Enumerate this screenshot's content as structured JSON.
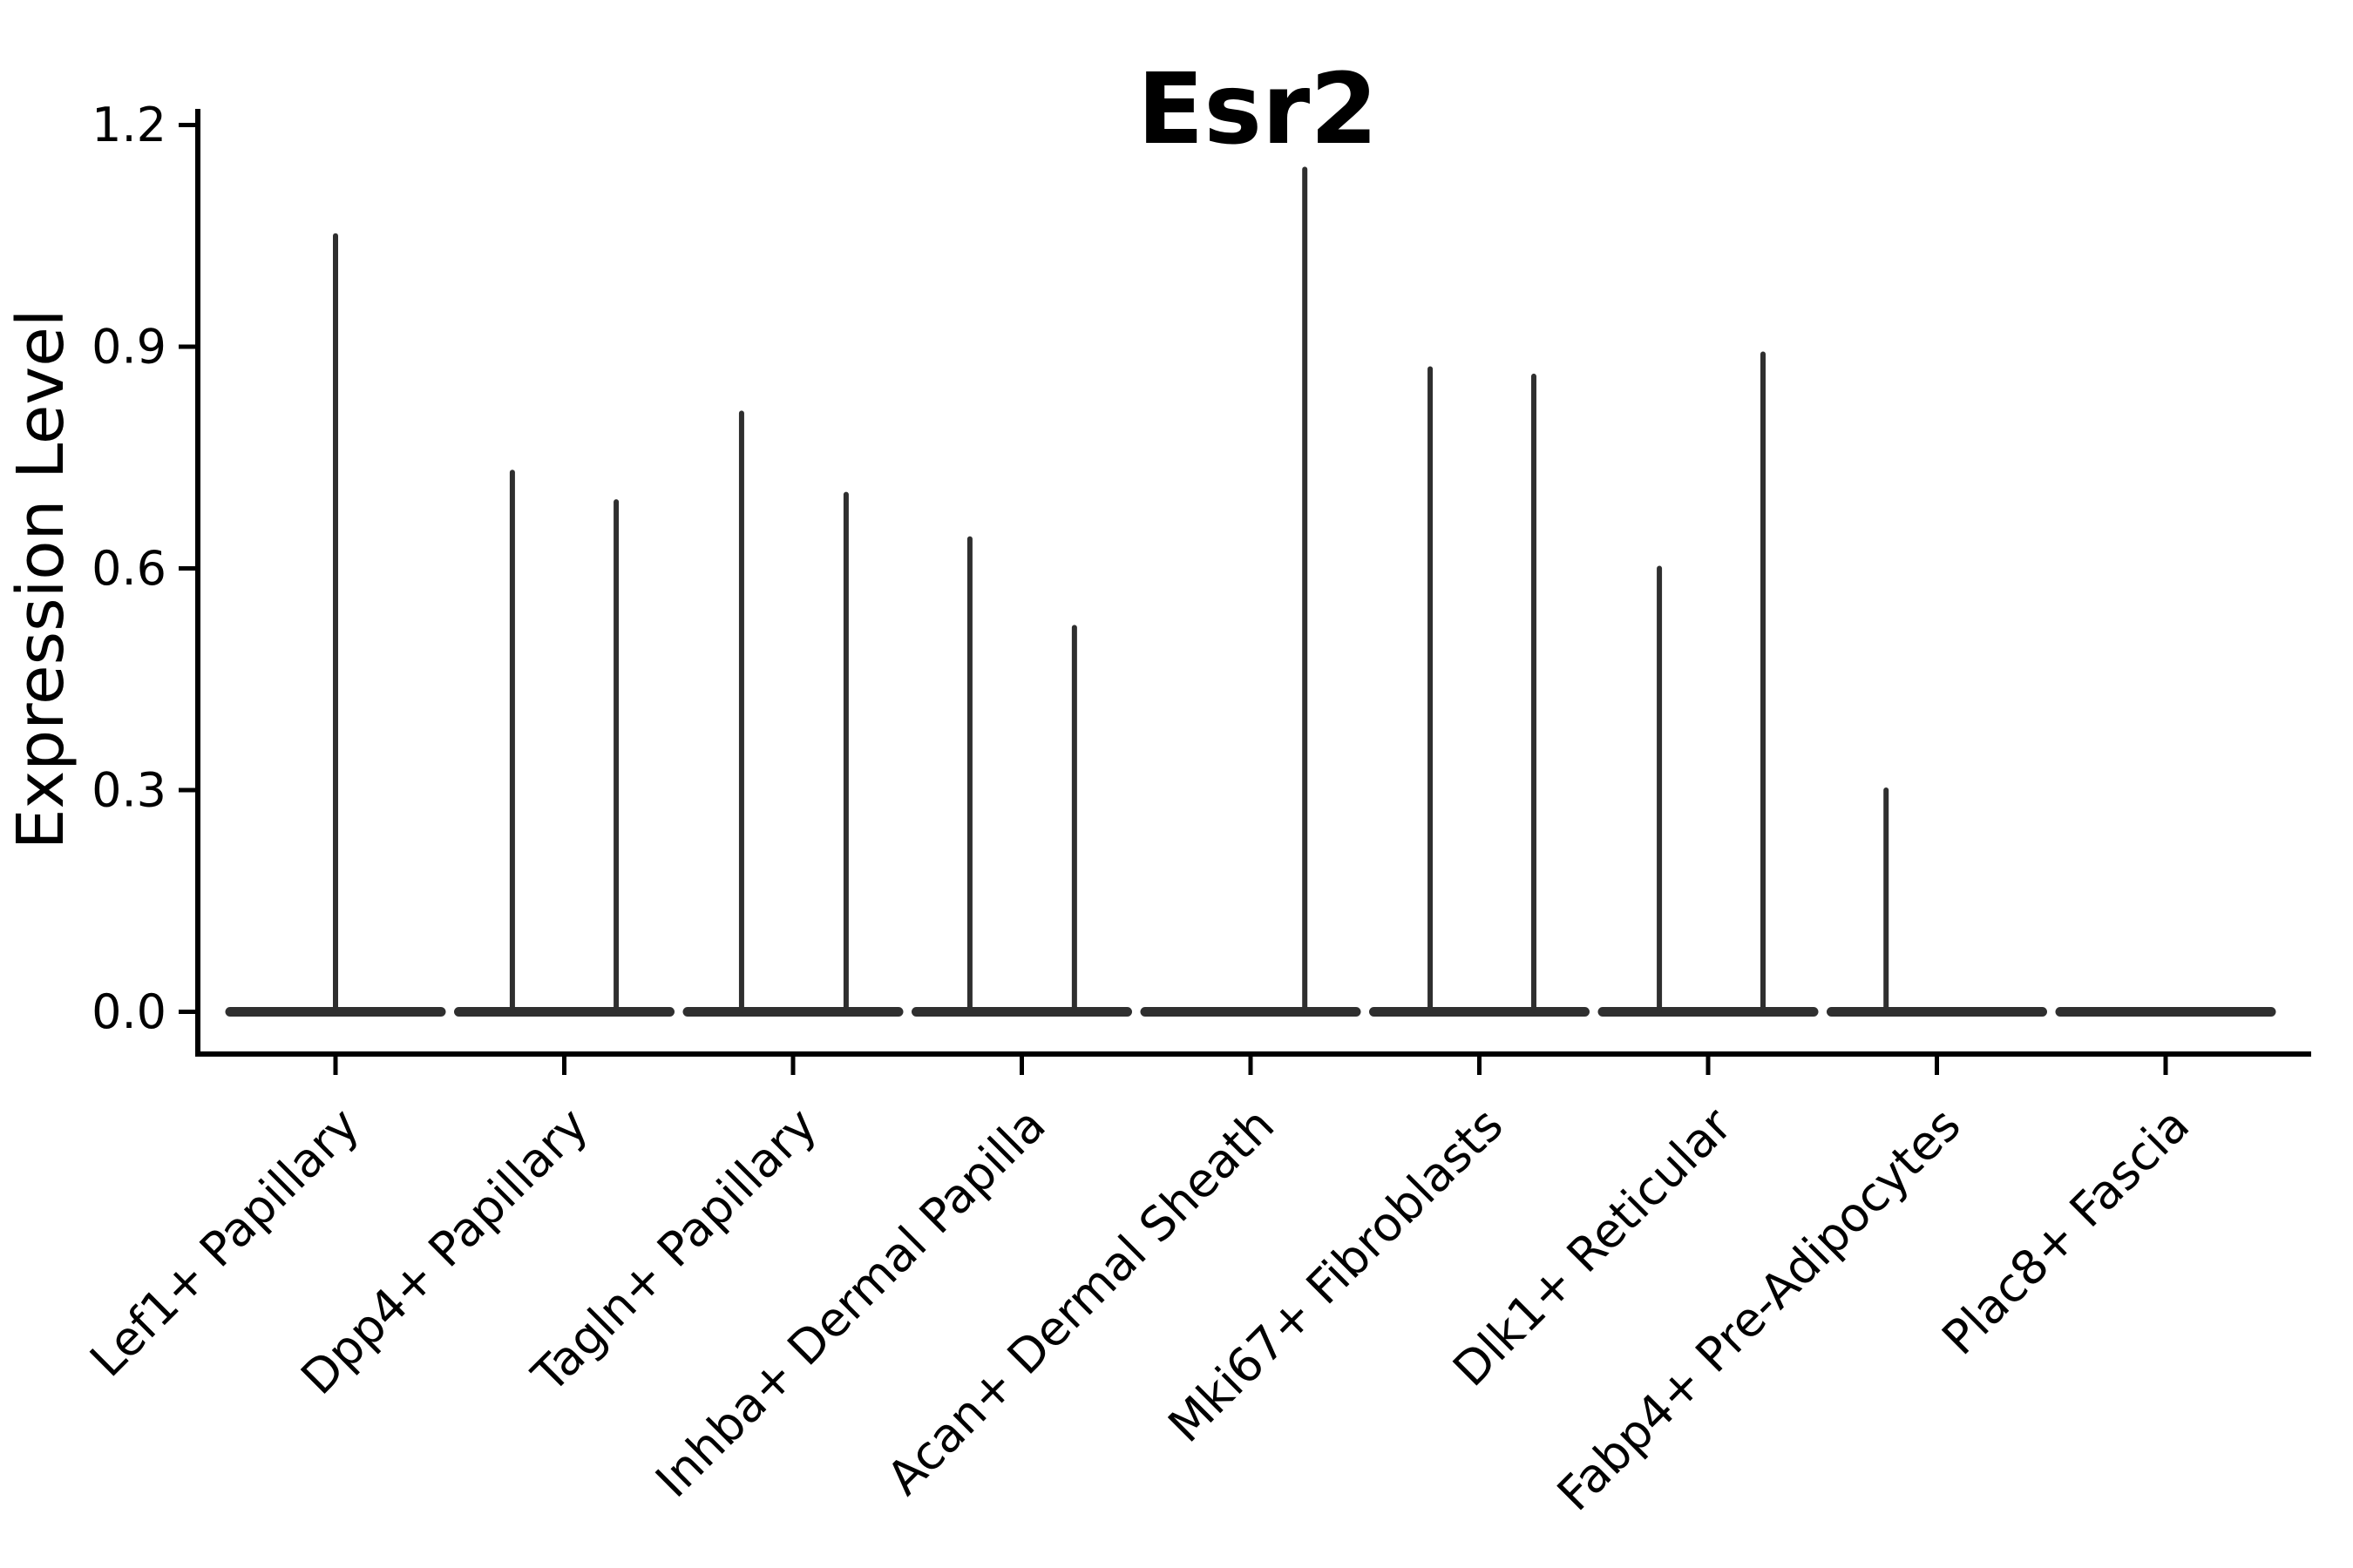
{
  "title": "Esr2",
  "axis_color": "#000000",
  "violin_color": "#2f2f2f",
  "chart_data": {
    "type": "violin",
    "title": "Esr2",
    "xlabel": "",
    "ylabel": "Expression Level",
    "ylim": [
      -0.06,
      1.22
    ],
    "grid": false,
    "legend": "none",
    "yticks": [
      0.0,
      0.3,
      0.6,
      0.9,
      1.2
    ],
    "ytick_labels": [
      "0.0",
      "0.3",
      "0.6",
      "0.9",
      "1.2"
    ],
    "categories": [
      "Lef1+ Papillary",
      "Dpp4+ Papillary",
      "Tagln+ Papillary",
      "Inhba+ Dermal Papilla",
      "Acan+ Dermal Sheath",
      "Mki67+ Fibroblasts",
      "Dlk1+ Reticular",
      "Fabp4+ Pre-Adipocytes",
      "Plac8+ Fascia"
    ],
    "description": "Violin plot of Esr2 expression; each cell type shows a wide flat density bulge at expression 0 with thin vertical density spikes reaching the maximum expressing cells.",
    "violins": [
      {
        "category": "Lef1+ Papillary",
        "baseline_value": 0.0,
        "spikes": [
          {
            "offset": 0.0,
            "max": 1.05
          }
        ]
      },
      {
        "category": "Dpp4+ Papillary",
        "baseline_value": 0.0,
        "spikes": [
          {
            "offset": -0.227,
            "max": 0.73
          },
          {
            "offset": 0.227,
            "max": 0.69
          }
        ]
      },
      {
        "category": "Tagln+ Papillary",
        "baseline_value": 0.0,
        "spikes": [
          {
            "offset": -0.225,
            "max": 0.81
          },
          {
            "offset": 0.232,
            "max": 0.7
          }
        ]
      },
      {
        "category": "Inhba+ Dermal Papilla",
        "baseline_value": 0.0,
        "spikes": [
          {
            "offset": -0.227,
            "max": 0.64
          },
          {
            "offset": 0.23,
            "max": 0.52
          }
        ]
      },
      {
        "category": "Acan+ Dermal Sheath",
        "baseline_value": 0.0,
        "spikes": [
          {
            "offset": 0.237,
            "max": 1.14
          }
        ]
      },
      {
        "category": "Mki67+ Fibroblasts",
        "baseline_value": 0.0,
        "spikes": [
          {
            "offset": -0.215,
            "max": 0.87
          },
          {
            "offset": 0.238,
            "max": 0.86
          }
        ]
      },
      {
        "category": "Dlk1+ Reticular",
        "baseline_value": 0.0,
        "spikes": [
          {
            "offset": -0.213,
            "max": 0.6
          },
          {
            "offset": 0.24,
            "max": 0.89
          }
        ]
      },
      {
        "category": "Fabp4+ Pre-Adipocytes",
        "baseline_value": 0.0,
        "spikes": [
          {
            "offset": -0.222,
            "max": 0.3
          }
        ]
      },
      {
        "category": "Plac8+ Fascia",
        "baseline_value": 0.0,
        "spikes": []
      }
    ]
  }
}
